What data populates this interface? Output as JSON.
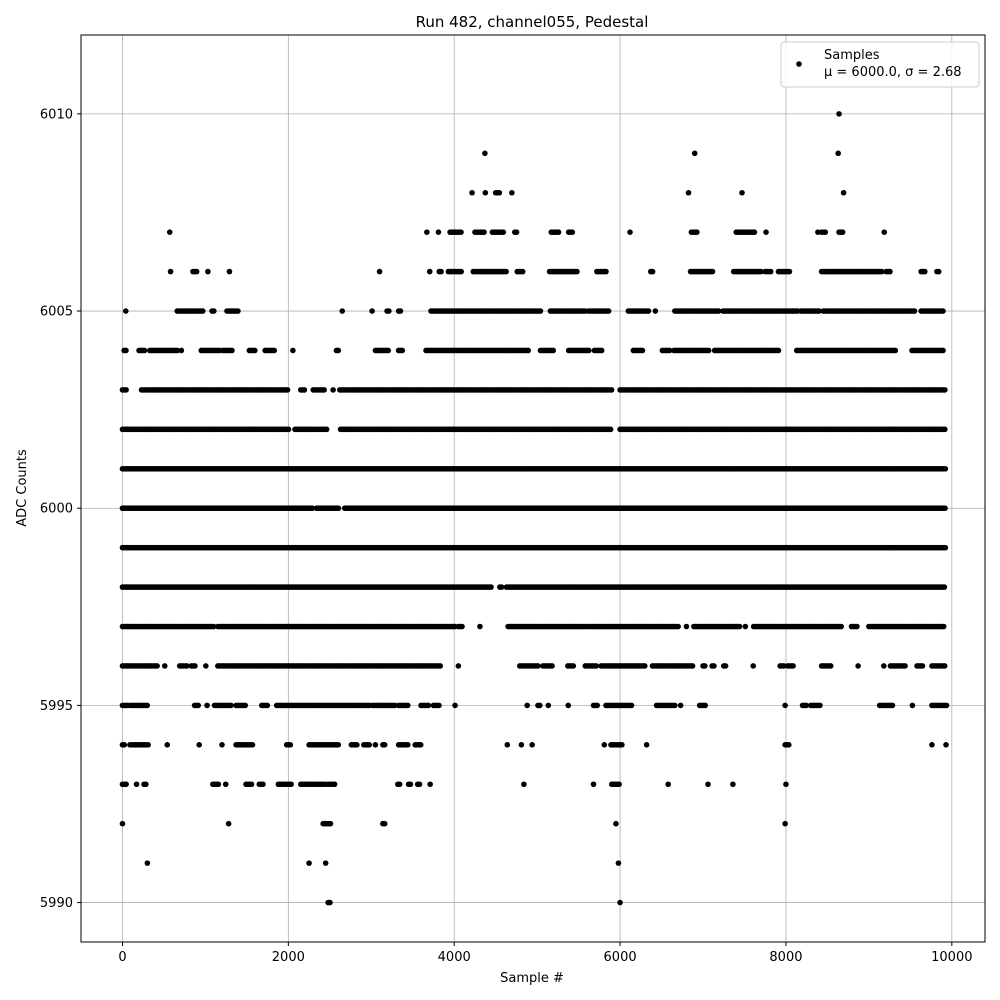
{
  "chart_data": {
    "type": "scatter",
    "title": "Run 482, channel055, Pedestal",
    "xlabel": "Sample #",
    "ylabel": "ADC Counts",
    "xlim": [
      -500,
      10400
    ],
    "ylim": [
      5989,
      6012
    ],
    "xticks": [
      0,
      2000,
      4000,
      6000,
      8000,
      10000
    ],
    "yticks": [
      5990,
      5995,
      6000,
      6005,
      6010
    ],
    "xtick_labels": [
      "0",
      "2000",
      "4000",
      "6000",
      "8000",
      "10000"
    ],
    "ytick_labels": [
      "5990",
      "5995",
      "6000",
      "6005",
      "6010"
    ],
    "grid": true,
    "legend": {
      "position": "top-right",
      "entry": "Samples",
      "stats": "μ = 6000.0, σ = 2.68"
    },
    "marker_color": "#000000",
    "series": [
      {
        "name": "Samples",
        "points_per_level": {
          "5990": [
            [
              2480,
              2520
            ],
            [
              6000,
              6000
            ]
          ],
          "5991": [
            [
              300,
              300
            ],
            [
              2250,
              2250
            ],
            [
              2450,
              2450
            ],
            [
              5980,
              5980
            ]
          ],
          "5992": [
            [
              0,
              0
            ],
            [
              1280,
              1280
            ],
            [
              2420,
              2520
            ],
            [
              3140,
              3180
            ],
            [
              5950,
              5950
            ],
            [
              7990,
              7990
            ]
          ],
          "5993": [
            [
              0,
              60
            ],
            [
              170,
              170
            ],
            [
              260,
              290
            ],
            [
              1090,
              1160
            ],
            [
              1240,
              1250
            ],
            [
              1490,
              1560
            ],
            [
              1650,
              1700
            ],
            [
              1880,
              2050
            ],
            [
              2150,
              2450
            ],
            [
              2470,
              2560
            ],
            [
              3320,
              3350
            ],
            [
              3450,
              3490
            ],
            [
              3560,
              3590
            ],
            [
              3710,
              3710
            ],
            [
              4840,
              4840
            ],
            [
              5680,
              5680
            ],
            [
              5900,
              5990
            ],
            [
              6580,
              6580
            ],
            [
              7060,
              7060
            ],
            [
              7360,
              7360
            ],
            [
              7990,
              8010
            ]
          ],
          "5994": [
            [
              0,
              40
            ],
            [
              90,
              180
            ],
            [
              200,
              320
            ],
            [
              530,
              550
            ],
            [
              920,
              930
            ],
            [
              1190,
              1210
            ],
            [
              1370,
              1580
            ],
            [
              1980,
              2040
            ],
            [
              2250,
              2620
            ],
            [
              2760,
              2830
            ],
            [
              2910,
              2990
            ],
            [
              3040,
              3060
            ],
            [
              3140,
              3180
            ],
            [
              3330,
              3440
            ],
            [
              3530,
              3600
            ],
            [
              4640,
              4640
            ],
            [
              4810,
              4810
            ],
            [
              4940,
              4940
            ],
            [
              5800,
              5820
            ],
            [
              5890,
              6030
            ],
            [
              6320,
              6320
            ],
            [
              7990,
              8040
            ],
            [
              9760,
              9760
            ],
            [
              9930,
              9930
            ]
          ],
          "5995": [
            [
              0,
              80
            ],
            [
              100,
              310
            ],
            [
              870,
              920
            ],
            [
              1010,
              1030
            ],
            [
              1110,
              1310
            ],
            [
              1370,
              1490
            ],
            [
              1680,
              1760
            ],
            [
              1860,
              3000
            ],
            [
              3020,
              3300
            ],
            [
              3330,
              3460
            ],
            [
              3600,
              3690
            ],
            [
              3750,
              3830
            ],
            [
              4000,
              4020
            ],
            [
              4880,
              4880
            ],
            [
              5010,
              5050
            ],
            [
              5130,
              5140
            ],
            [
              5370,
              5380
            ],
            [
              5680,
              5730
            ],
            [
              5830,
              6150
            ],
            [
              6440,
              6660
            ],
            [
              6730,
              6730
            ],
            [
              6960,
              7030
            ],
            [
              7980,
              8000
            ],
            [
              8200,
              8250
            ],
            [
              8300,
              8410
            ],
            [
              9130,
              9300
            ],
            [
              9520,
              9530
            ],
            [
              9760,
              9950
            ]
          ],
          "5996": [
            [
              0,
              420
            ],
            [
              500,
              520
            ],
            [
              690,
              780
            ],
            [
              830,
              880
            ],
            [
              1000,
              1010
            ],
            [
              1150,
              1700
            ],
            [
              1720,
              3850
            ],
            [
              4040,
              4060
            ],
            [
              4790,
              5020
            ],
            [
              5070,
              5190
            ],
            [
              5370,
              5450
            ],
            [
              5580,
              5720
            ],
            [
              5770,
              6300
            ],
            [
              6390,
              6890
            ],
            [
              7000,
              7040
            ],
            [
              7110,
              7150
            ],
            [
              7250,
              7290
            ],
            [
              7600,
              7610
            ],
            [
              7930,
              7990
            ],
            [
              8020,
              8100
            ],
            [
              8430,
              8560
            ],
            [
              8860,
              8880
            ],
            [
              9170,
              9190
            ],
            [
              9260,
              9440
            ],
            [
              9580,
              9660
            ],
            [
              9760,
              9920
            ]
          ],
          "5997": [
            [
              0,
              1100
            ],
            [
              1150,
              4020
            ],
            [
              4050,
              4100
            ],
            [
              4300,
              4320
            ],
            [
              4650,
              5580
            ],
            [
              5600,
              6720
            ],
            [
              6790,
              6810
            ],
            [
              6890,
              7440
            ],
            [
              7500,
              7520
            ],
            [
              7610,
              8680
            ],
            [
              8790,
              8870
            ],
            [
              9000,
              9920
            ]
          ],
          "5998": [
            [
              0,
              4450
            ],
            [
              4550,
              4580
            ],
            [
              4630,
              9930
            ]
          ],
          "5999": [
            [
              0,
              9930
            ]
          ],
          "6000": [
            [
              0,
              2300
            ],
            [
              2340,
              2620
            ],
            [
              2680,
              9930
            ]
          ],
          "6001": [
            [
              0,
              9930
            ]
          ],
          "6002": [
            [
              0,
              2010
            ],
            [
              2080,
              2300
            ],
            [
              2330,
              2480
            ],
            [
              2630,
              5900
            ],
            [
              6000,
              9930
            ]
          ],
          "6003": [
            [
              0,
              60
            ],
            [
              230,
              2010
            ],
            [
              2150,
              2200
            ],
            [
              2300,
              2450
            ],
            [
              2530,
              2550
            ],
            [
              2620,
              5900
            ],
            [
              6000,
              9930
            ]
          ],
          "6004": [
            [
              20,
              60
            ],
            [
              200,
              270
            ],
            [
              330,
              680
            ],
            [
              700,
              720
            ],
            [
              950,
              1180
            ],
            [
              1210,
              1330
            ],
            [
              1530,
              1600
            ],
            [
              1720,
              1830
            ],
            [
              2050,
              2060
            ],
            [
              2580,
              2620
            ],
            [
              3050,
              3220
            ],
            [
              3330,
              3380
            ],
            [
              3660,
              4900
            ],
            [
              5040,
              5200
            ],
            [
              5380,
              5630
            ],
            [
              5690,
              5780
            ],
            [
              6160,
              6280
            ],
            [
              6510,
              6600
            ],
            [
              6650,
              7080
            ],
            [
              7140,
              7930
            ],
            [
              8130,
              9320
            ],
            [
              9520,
              9910
            ]
          ],
          "6005": [
            [
              40,
              40
            ],
            [
              660,
              980
            ],
            [
              1080,
              1120
            ],
            [
              1260,
              1410
            ],
            [
              2650,
              2650
            ],
            [
              3000,
              3020
            ],
            [
              3190,
              3230
            ],
            [
              3330,
              3360
            ],
            [
              3720,
              5050
            ],
            [
              5160,
              5580
            ],
            [
              5620,
              5870
            ],
            [
              6100,
              6350
            ],
            [
              6420,
              6430
            ],
            [
              6660,
              7200
            ],
            [
              7240,
              8150
            ],
            [
              8180,
              8410
            ],
            [
              8450,
              9550
            ],
            [
              9630,
              9900
            ]
          ],
          "6006": [
            [
              580,
              580
            ],
            [
              850,
              900
            ],
            [
              1020,
              1040
            ],
            [
              1280,
              1300
            ],
            [
              3090,
              3110
            ],
            [
              3700,
              3710
            ],
            [
              3820,
              3850
            ],
            [
              3930,
              4100
            ],
            [
              4230,
              4640
            ],
            [
              4760,
              4840
            ],
            [
              5150,
              5480
            ],
            [
              5720,
              5830
            ],
            [
              6370,
              6400
            ],
            [
              6850,
              7130
            ],
            [
              7370,
              7700
            ],
            [
              7750,
              7820
            ],
            [
              7910,
              8050
            ],
            [
              8430,
              9160
            ],
            [
              9210,
              9260
            ],
            [
              9630,
              9680
            ],
            [
              9820,
              9850
            ]
          ],
          "6007": [
            [
              570,
              570
            ],
            [
              3660,
              3680
            ],
            [
              3810,
              3810
            ],
            [
              3950,
              4090
            ],
            [
              4250,
              4380
            ],
            [
              4460,
              4610
            ],
            [
              4730,
              4770
            ],
            [
              5170,
              5270
            ],
            [
              5380,
              5440
            ],
            [
              6110,
              6130
            ],
            [
              6860,
              6930
            ],
            [
              7400,
              7620
            ],
            [
              7750,
              7770
            ],
            [
              8380,
              8390
            ],
            [
              8430,
              8480
            ],
            [
              8640,
              8700
            ],
            [
              9180,
              9190
            ]
          ],
          "6008": [
            [
              4210,
              4220
            ],
            [
              4370,
              4380
            ],
            [
              4500,
              4560
            ],
            [
              4690,
              4700
            ],
            [
              6820,
              6830
            ],
            [
              7460,
              7480
            ],
            [
              8690,
              8700
            ]
          ],
          "6009": [
            [
              4370,
              4370
            ],
            [
              6900,
              6900
            ],
            [
              8630,
              8630
            ]
          ],
          "6010": [
            [
              8640,
              8640
            ]
          ]
        }
      }
    ]
  }
}
